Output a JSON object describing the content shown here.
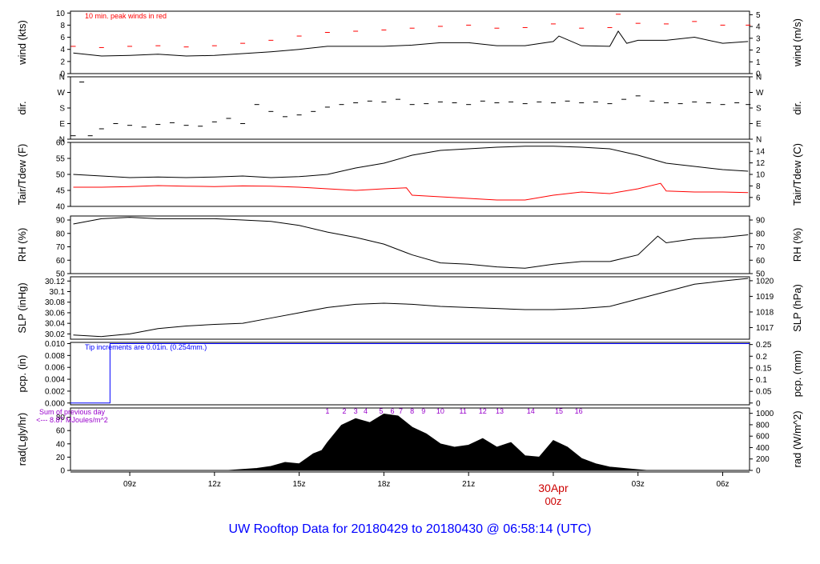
{
  "page_title": "UW Rooftop Data for 20180429  to  20180430 @ 06:58:14  (UTC)",
  "x_axis": {
    "tick_labels": [
      "09z",
      "12z",
      "15z",
      "18z",
      "21z",
      "03z",
      "06z"
    ],
    "tick_hours": [
      9,
      12,
      15,
      18,
      21,
      27,
      30
    ],
    "date_label": "30Apr",
    "date_sublabel": "00z",
    "date_hour": 24,
    "range_hours": [
      6.9,
      30.95
    ]
  },
  "colors": {
    "black": "#000000",
    "red": "#ff0000",
    "blue": "#0000ff",
    "purple": "#9900cc",
    "title_blue": "#0000ff"
  },
  "chart_data": [
    {
      "id": "wind",
      "type": "line",
      "ylabel": "wind (kts)",
      "ylabel_right": "wind (m/s)",
      "ylim": [
        0,
        10.3
      ],
      "yticks": [
        0,
        2,
        4,
        6,
        8,
        10
      ],
      "yticks_right": [
        0,
        1,
        2,
        3,
        4,
        5
      ],
      "right_scale": 0.5144,
      "annotation": "10 min. peak winds in red",
      "series": [
        {
          "color": "#000000",
          "x": [
            7,
            8,
            9,
            10,
            11,
            12,
            13,
            14,
            15,
            16,
            17,
            18,
            19,
            20,
            21,
            22,
            23,
            24,
            24.2,
            25,
            26,
            26.3,
            26.6,
            27,
            28,
            29,
            30,
            30.9
          ],
          "y": [
            3.4,
            2.9,
            3.0,
            3.2,
            2.9,
            3.0,
            3.3,
            3.6,
            4.0,
            4.5,
            4.5,
            4.5,
            4.7,
            5.1,
            5.1,
            4.6,
            4.6,
            5.3,
            6.2,
            4.6,
            4.5,
            7.0,
            5.0,
            5.5,
            5.5,
            6.0,
            5.0,
            5.3
          ]
        },
        {
          "color": "#ff0000",
          "marks": "dash",
          "x": [
            7,
            8,
            9,
            10,
            11,
            12,
            13,
            14,
            15,
            16,
            17,
            18,
            19,
            20,
            21,
            22,
            23,
            24,
            25,
            26,
            26.3,
            27,
            28,
            29,
            30,
            30.9
          ],
          "y": [
            4.5,
            4.3,
            4.5,
            4.6,
            4.4,
            4.6,
            5.0,
            5.5,
            6.2,
            6.8,
            7.0,
            7.2,
            7.5,
            7.8,
            8.0,
            7.5,
            7.6,
            8.2,
            7.5,
            7.6,
            9.8,
            8.3,
            8.2,
            8.6,
            8.0,
            8.0
          ]
        }
      ]
    },
    {
      "id": "dir",
      "type": "scatter",
      "ylabel": "dir.",
      "ylabel_right": "dir.",
      "ylim": [
        0,
        360
      ],
      "yticks": [
        0,
        90,
        180,
        270,
        360
      ],
      "ytick_labels": [
        "N",
        "E",
        "S",
        "W",
        "N"
      ],
      "series": [
        {
          "color": "#000000",
          "x": [
            7,
            7.3,
            7.6,
            8,
            8.5,
            9,
            9.5,
            10,
            10.5,
            11,
            11.5,
            12,
            12.5,
            13,
            13.5,
            14,
            14.5,
            15,
            15.5,
            16,
            16.5,
            17,
            17.5,
            18,
            18.5,
            19,
            19.5,
            20,
            20.5,
            21,
            21.5,
            22,
            22.5,
            23,
            23.5,
            24,
            24.5,
            25,
            25.5,
            26,
            26.5,
            27,
            27.5,
            28,
            28.5,
            29,
            29.5,
            30,
            30.5,
            30.9
          ],
          "y": [
            20,
            330,
            20,
            60,
            90,
            80,
            70,
            85,
            95,
            80,
            75,
            100,
            120,
            90,
            200,
            160,
            130,
            140,
            160,
            185,
            200,
            210,
            220,
            215,
            230,
            200,
            205,
            215,
            210,
            200,
            220,
            210,
            215,
            205,
            215,
            210,
            220,
            210,
            215,
            205,
            230,
            250,
            220,
            210,
            205,
            215,
            210,
            200,
            210,
            200
          ]
        }
      ]
    },
    {
      "id": "temp",
      "type": "line",
      "ylabel": "Tair/Tdew (F)",
      "ylabel_right": "Tair/Tdew (C)",
      "ylim": [
        40,
        60
      ],
      "yticks": [
        40,
        45,
        50,
        55,
        60
      ],
      "yticks_right": [
        6,
        8,
        10,
        12,
        14
      ],
      "right_offset": 32,
      "right_scale": 1.8,
      "series": [
        {
          "color": "#000000",
          "x": [
            7,
            8,
            9,
            10,
            11,
            12,
            13,
            14,
            15,
            16,
            17,
            18,
            19,
            20,
            21,
            22,
            23,
            24,
            25,
            26,
            27,
            28,
            29,
            30,
            30.9
          ],
          "y": [
            50.0,
            49.5,
            49.0,
            49.2,
            49.0,
            49.2,
            49.5,
            49.0,
            49.3,
            50.0,
            52.0,
            53.5,
            56.0,
            57.5,
            58.0,
            58.5,
            58.8,
            58.8,
            58.5,
            58.0,
            56.0,
            53.5,
            52.5,
            51.5,
            51.0
          ]
        },
        {
          "color": "#ff0000",
          "x": [
            7,
            8,
            9,
            10,
            11,
            12,
            13,
            14,
            15,
            16,
            17,
            18,
            18.8,
            19,
            20,
            21,
            22,
            23,
            24,
            25,
            26,
            27,
            27.8,
            28,
            29,
            30,
            30.9
          ],
          "y": [
            46.0,
            46.0,
            46.2,
            46.5,
            46.3,
            46.2,
            46.4,
            46.3,
            46.0,
            45.5,
            45.0,
            45.5,
            45.8,
            43.5,
            43.0,
            42.5,
            42.0,
            42.0,
            43.5,
            44.5,
            44.0,
            45.5,
            47.2,
            44.8,
            44.5,
            44.5,
            44.3
          ]
        }
      ]
    },
    {
      "id": "rh",
      "type": "line",
      "ylabel": "RH (%)",
      "ylabel_right": "RH (%)",
      "ylim": [
        50,
        93
      ],
      "yticks": [
        50,
        60,
        70,
        80,
        90
      ],
      "yticks_right": [
        50,
        60,
        70,
        80,
        90
      ],
      "series": [
        {
          "color": "#000000",
          "x": [
            7,
            8,
            9,
            10,
            11,
            12,
            13,
            14,
            15,
            16,
            17,
            18,
            19,
            20,
            21,
            22,
            23,
            24,
            25,
            26,
            27,
            27.7,
            28,
            29,
            30,
            30.9
          ],
          "y": [
            87,
            91,
            92,
            91,
            91,
            91,
            90,
            89,
            86,
            81,
            77,
            72,
            64,
            58,
            57,
            55,
            54,
            57,
            59,
            59,
            64,
            78,
            73,
            76,
            77,
            79
          ]
        }
      ]
    },
    {
      "id": "slp",
      "type": "line",
      "ylabel": "SLP (inHg)",
      "ylabel_right": "SLP (hPa)",
      "ylim": [
        30.01,
        30.128
      ],
      "yticks": [
        30.02,
        30.04,
        30.06,
        30.08,
        30.1,
        30.12
      ],
      "yticks_right": [
        1017,
        1018,
        1019,
        1020
      ],
      "right_scale": 33.8639,
      "series": [
        {
          "color": "#000000",
          "x": [
            7,
            8,
            9,
            10,
            11,
            12,
            13,
            14,
            15,
            16,
            17,
            18,
            19,
            20,
            21,
            22,
            23,
            24,
            25,
            26,
            27,
            28,
            29,
            30,
            30.9
          ],
          "y": [
            30.018,
            30.015,
            30.02,
            30.03,
            30.035,
            30.038,
            30.04,
            30.05,
            30.06,
            30.07,
            30.076,
            30.078,
            30.076,
            30.072,
            30.07,
            30.068,
            30.066,
            30.066,
            30.068,
            30.072,
            30.086,
            30.1,
            30.114,
            30.12,
            30.125
          ]
        }
      ]
    },
    {
      "id": "pcp",
      "type": "line",
      "ylabel": "pcp. (in)",
      "ylabel_right": "pcp. (mm)",
      "ylim": [
        -0.0003,
        0.0102
      ],
      "yticks": [
        0,
        0.002,
        0.004,
        0.006,
        0.008,
        0.01
      ],
      "ytick_labels": [
        "0.000",
        "0.002",
        "0.004",
        "0.006",
        "0.008",
        "0.010"
      ],
      "yticks_right": [
        0,
        0.05,
        0.1,
        0.15,
        0.2,
        0.25
      ],
      "right_scale": 25.4,
      "annotation": "Tip increments are 0.01in. (0.254mm.)",
      "series": [
        {
          "color": "#0000ff",
          "x": [
            6.9,
            8.3,
            8.3,
            30.95
          ],
          "y": [
            0,
            0,
            0.01,
            0.01
          ]
        }
      ]
    },
    {
      "id": "rad",
      "type": "area",
      "ylabel": "rad(Lgly/hr)",
      "ylabel_right": "rad (W/m^2)",
      "ylim": [
        0,
        94
      ],
      "yticks": [
        0,
        20,
        40,
        60,
        80
      ],
      "yticks_right": [
        0,
        200,
        400,
        600,
        800,
        1000
      ],
      "right_scale": 11.63,
      "annotation_line1": "Sum of previous day",
      "annotation_line2": "<--- 8.87 MJoules/m^2",
      "hour_labels": [
        "1",
        "2",
        "3",
        "4",
        "5",
        "6",
        "7",
        "8",
        "9",
        "10",
        "11",
        "12",
        "13",
        "14",
        "15",
        "16"
      ],
      "hour_label_x": [
        16.0,
        16.6,
        17.0,
        17.35,
        17.9,
        18.3,
        18.6,
        19.0,
        19.4,
        20.0,
        20.8,
        21.5,
        22.1,
        23.2,
        24.2,
        24.9
      ],
      "series": [
        {
          "color": "#000000",
          "x": [
            12.5,
            13.5,
            14.0,
            14.5,
            15.0,
            15.5,
            15.8,
            16.0,
            16.5,
            17.0,
            17.5,
            18.0,
            18.5,
            19.0,
            19.5,
            20.0,
            20.5,
            21.0,
            21.5,
            22.0,
            22.5,
            23.0,
            23.5,
            24.0,
            24.5,
            25.0,
            25.5,
            26.0,
            26.5,
            27.0,
            27.3
          ],
          "y": [
            0,
            3,
            6,
            12,
            10,
            25,
            30,
            42,
            68,
            78,
            72,
            85,
            82,
            65,
            55,
            40,
            35,
            38,
            48,
            35,
            42,
            22,
            20,
            45,
            35,
            18,
            10,
            5,
            3,
            1,
            0
          ]
        }
      ]
    }
  ]
}
